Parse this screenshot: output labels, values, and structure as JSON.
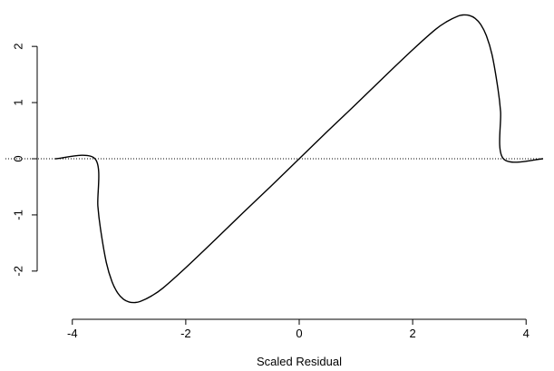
{
  "chart_data": {
    "type": "line",
    "title": "",
    "xlabel": "Scaled Residual",
    "ylabel": "",
    "xlim": [
      -4.3,
      4.3
    ],
    "ylim": [
      -2.6,
      2.6
    ],
    "x_ticks": [
      -4,
      -2,
      0,
      2,
      4
    ],
    "x_tick_labels": [
      "-4",
      "-2",
      "0",
      "2",
      "4"
    ],
    "y_ticks": [
      -2,
      -1,
      0,
      1,
      2
    ],
    "y_tick_labels": [
      "-2",
      "-1",
      "0",
      "1",
      "2"
    ],
    "grid": false,
    "reference_line": {
      "y": 0,
      "style": "dotted"
    },
    "series": [
      {
        "x": [
          -4.3,
          -3.6,
          -3.55,
          -3.5,
          -3.4,
          -3.3,
          -3.2,
          -3.1,
          -3.0,
          -2.9,
          -2.8,
          -2.6,
          -2.4,
          -2.0,
          -1.5,
          -1.0,
          -0.5,
          0.0,
          0.5,
          1.0,
          1.5,
          2.0,
          2.4,
          2.6,
          2.8,
          2.9,
          3.0,
          3.1,
          3.2,
          3.3,
          3.4,
          3.5,
          3.55,
          3.6,
          4.3
        ],
        "y": [
          0,
          0,
          -0.84,
          -1.27,
          -1.85,
          -2.19,
          -2.39,
          -2.5,
          -2.55,
          -2.56,
          -2.54,
          -2.44,
          -2.3,
          -1.94,
          -1.46,
          -0.97,
          -0.49,
          0.0,
          0.49,
          0.97,
          1.46,
          1.94,
          2.3,
          2.44,
          2.54,
          2.56,
          2.55,
          2.5,
          2.39,
          2.19,
          1.85,
          1.27,
          0.84,
          0,
          0
        ],
        "color": "#000000"
      }
    ]
  }
}
